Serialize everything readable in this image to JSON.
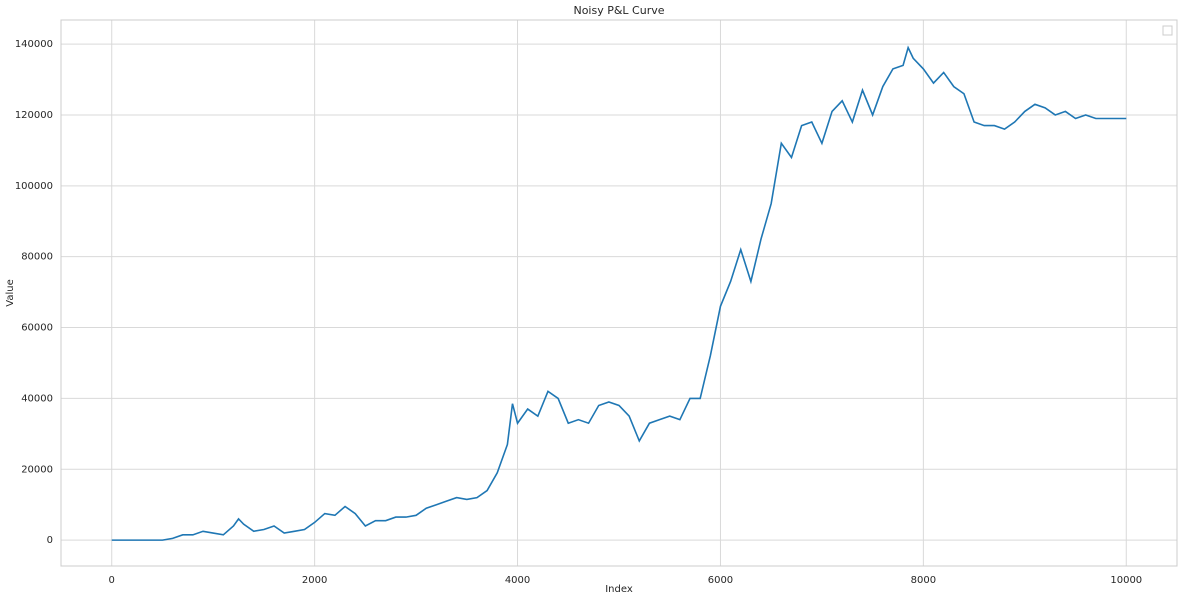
{
  "chart_data": {
    "type": "line",
    "title": "Noisy P&L Curve",
    "x_label": "Index",
    "y_label": "Value",
    "x": [
      0,
      100,
      200,
      300,
      400,
      500,
      600,
      700,
      800,
      900,
      1000,
      1100,
      1200,
      1250,
      1300,
      1400,
      1500,
      1600,
      1700,
      1800,
      1900,
      2000,
      2100,
      2200,
      2300,
      2400,
      2500,
      2600,
      2700,
      2800,
      2900,
      3000,
      3100,
      3200,
      3300,
      3400,
      3500,
      3600,
      3700,
      3800,
      3900,
      3950,
      4000,
      4100,
      4200,
      4300,
      4400,
      4500,
      4600,
      4700,
      4800,
      4900,
      5000,
      5100,
      5200,
      5300,
      5400,
      5500,
      5600,
      5700,
      5800,
      5900,
      6000,
      6100,
      6200,
      6300,
      6400,
      6500,
      6600,
      6700,
      6800,
      6900,
      7000,
      7100,
      7200,
      7300,
      7400,
      7500,
      7600,
      7700,
      7800,
      7850,
      7900,
      8000,
      8100,
      8200,
      8300,
      8400,
      8500,
      8600,
      8700,
      8800,
      8900,
      9000,
      9100,
      9200,
      9300,
      9400,
      9500,
      9600,
      9700,
      9800,
      9900,
      10000
    ],
    "series": [
      {
        "color": "#1f77b4",
        "values": [
          0,
          0,
          0,
          0,
          0,
          0,
          500,
          1500,
          1500,
          2500,
          2000,
          1500,
          4000,
          6000,
          4500,
          2500,
          3000,
          4000,
          2000,
          2500,
          3000,
          5000,
          7500,
          7000,
          9500,
          7500,
          4000,
          5500,
          5500,
          6500,
          6500,
          7000,
          9000,
          10000,
          11000,
          12000,
          11500,
          12000,
          14000,
          19000,
          27000,
          38500,
          33000,
          37000,
          35000,
          42000,
          40000,
          33000,
          34000,
          33000,
          38000,
          39000,
          38000,
          35000,
          28000,
          33000,
          34000,
          35000,
          34000,
          40000,
          40000,
          52000,
          66000,
          73000,
          82000,
          73000,
          85000,
          95000,
          112000,
          108000,
          117000,
          118000,
          112000,
          121000,
          124000,
          118000,
          127000,
          120000,
          128000,
          133000,
          134000,
          139000,
          136000,
          133000,
          129000,
          132000,
          128000,
          126000,
          118000,
          117000,
          117000,
          116000,
          118000,
          121000,
          123000,
          122000,
          120000,
          121000,
          119000,
          120000,
          119000,
          119000,
          119000,
          119000
        ]
      }
    ],
    "xlim": [
      -500,
      10500
    ],
    "ylim": [
      -7300,
      146800
    ],
    "xticks": [
      0,
      2000,
      4000,
      6000,
      8000,
      10000
    ],
    "yticks": [
      0,
      20000,
      40000,
      60000,
      80000,
      100000,
      120000,
      140000
    ],
    "grid": true
  }
}
